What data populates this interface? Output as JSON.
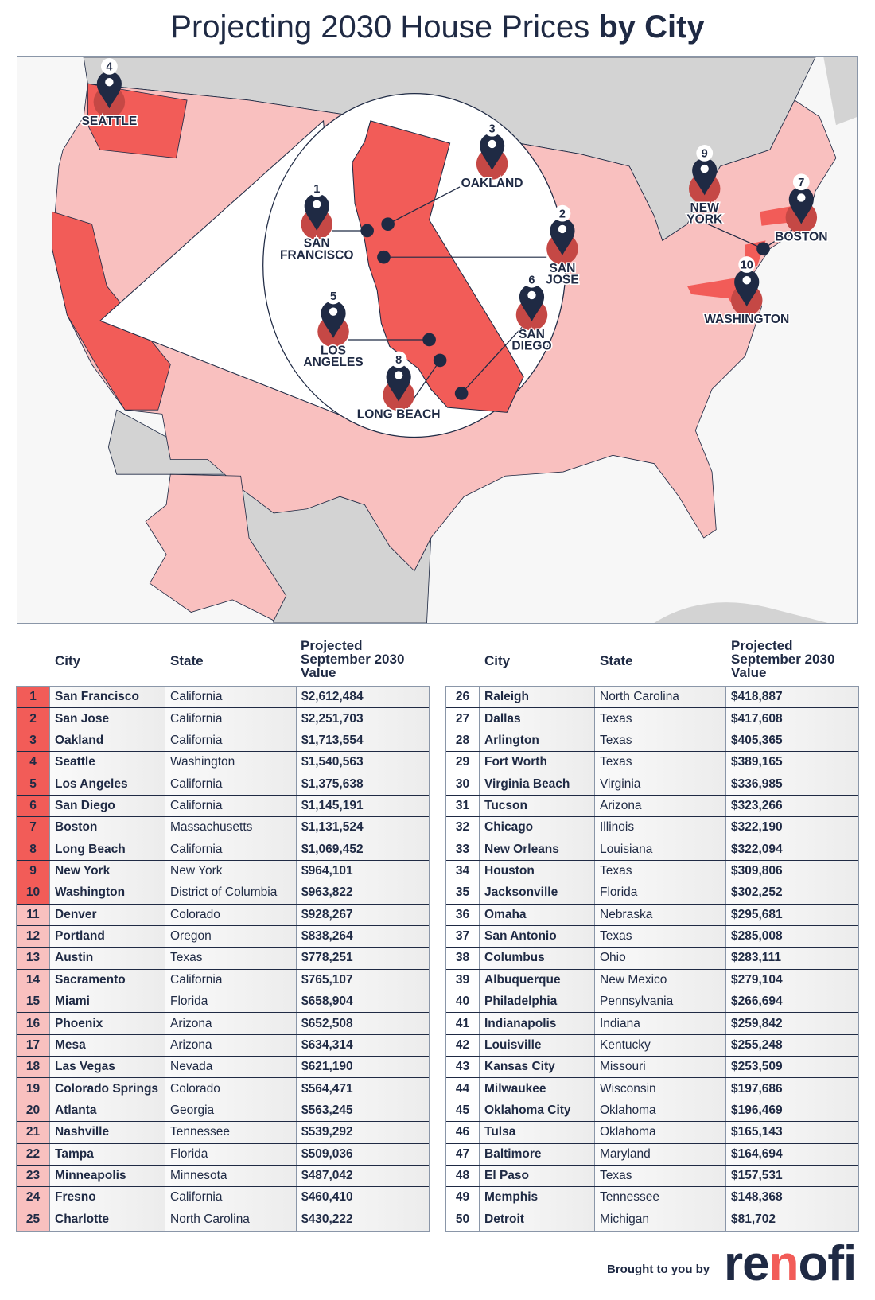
{
  "title": {
    "regular": "Projecting 2030 House Prices ",
    "bold": "by City"
  },
  "colors": {
    "top10": "#f25c58",
    "top25": "#f9c0bf",
    "text": "#1f2a44",
    "map_other_states": "#f9c0bf",
    "map_top_states": "#f25c58",
    "map_land_other": "#d3d3d3"
  },
  "map": {
    "pins": [
      {
        "rank": "4",
        "label_lines": [
          "SEATTLE"
        ]
      },
      {
        "rank": "1",
        "label_lines": [
          "SAN",
          "FRANCISCO"
        ]
      },
      {
        "rank": "3",
        "label_lines": [
          "OAKLAND"
        ]
      },
      {
        "rank": "2",
        "label_lines": [
          "SAN",
          "JOSE"
        ]
      },
      {
        "rank": "6",
        "label_lines": [
          "SAN",
          "DIEGO"
        ]
      },
      {
        "rank": "5",
        "label_lines": [
          "LOS",
          "ANGELES"
        ]
      },
      {
        "rank": "8",
        "label_lines": [
          "LONG BEACH"
        ]
      },
      {
        "rank": "9",
        "label_lines": [
          "NEW",
          "YORK"
        ]
      },
      {
        "rank": "7",
        "label_lines": [
          "BOSTON"
        ]
      },
      {
        "rank": "10",
        "label_lines": [
          "WASHINGTON"
        ]
      }
    ]
  },
  "table": {
    "headers": {
      "city": "City",
      "state": "State",
      "value": [
        "Projected",
        "September 2030",
        "Value"
      ]
    },
    "rows": [
      [
        "1",
        "San Francisco",
        "California",
        "$2,612,484"
      ],
      [
        "2",
        "San Jose",
        "California",
        "$2,251,703"
      ],
      [
        "3",
        "Oakland",
        "California",
        "$1,713,554"
      ],
      [
        "4",
        "Seattle",
        "Washington",
        "$1,540,563"
      ],
      [
        "5",
        "Los Angeles",
        "California",
        "$1,375,638"
      ],
      [
        "6",
        "San Diego",
        "California",
        "$1,145,191"
      ],
      [
        "7",
        "Boston",
        "Massachusetts",
        "$1,131,524"
      ],
      [
        "8",
        "Long Beach",
        "California",
        "$1,069,452"
      ],
      [
        "9",
        "New York",
        "New York",
        "$964,101"
      ],
      [
        "10",
        "Washington",
        "District of Columbia",
        "$963,822"
      ],
      [
        "11",
        "Denver",
        "Colorado",
        "$928,267"
      ],
      [
        "12",
        "Portland",
        "Oregon",
        "$838,264"
      ],
      [
        "13",
        "Austin",
        "Texas",
        "$778,251"
      ],
      [
        "14",
        "Sacramento",
        "California",
        "$765,107"
      ],
      [
        "15",
        "Miami",
        "Florida",
        "$658,904"
      ],
      [
        "16",
        "Phoenix",
        "Arizona",
        "$652,508"
      ],
      [
        "17",
        "Mesa",
        "Arizona",
        "$634,314"
      ],
      [
        "18",
        "Las Vegas",
        "Nevada",
        "$621,190"
      ],
      [
        "19",
        "Colorado Springs",
        "Colorado",
        "$564,471"
      ],
      [
        "20",
        "Atlanta",
        "Georgia",
        "$563,245"
      ],
      [
        "21",
        "Nashville",
        "Tennessee",
        "$539,292"
      ],
      [
        "22",
        "Tampa",
        "Florida",
        "$509,036"
      ],
      [
        "23",
        "Minneapolis",
        "Minnesota",
        "$487,042"
      ],
      [
        "24",
        "Fresno",
        "California",
        "$460,410"
      ],
      [
        "25",
        "Charlotte",
        "North Carolina",
        "$430,222"
      ],
      [
        "26",
        "Raleigh",
        "North Carolina",
        "$418,887"
      ],
      [
        "27",
        "Dallas",
        "Texas",
        "$417,608"
      ],
      [
        "28",
        "Arlington",
        "Texas",
        "$405,365"
      ],
      [
        "29",
        "Fort Worth",
        "Texas",
        "$389,165"
      ],
      [
        "30",
        "Virginia Beach",
        "Virginia",
        "$336,985"
      ],
      [
        "31",
        "Tucson",
        "Arizona",
        "$323,266"
      ],
      [
        "32",
        "Chicago",
        "Illinois",
        "$322,190"
      ],
      [
        "33",
        "New Orleans",
        "Louisiana",
        "$322,094"
      ],
      [
        "34",
        "Houston",
        "Texas",
        "$309,806"
      ],
      [
        "35",
        "Jacksonville",
        "Florida",
        "$302,252"
      ],
      [
        "36",
        "Omaha",
        "Nebraska",
        "$295,681"
      ],
      [
        "37",
        "San Antonio",
        "Texas",
        "$285,008"
      ],
      [
        "38",
        "Columbus",
        "Ohio",
        "$283,111"
      ],
      [
        "39",
        "Albuquerque",
        "New Mexico",
        "$279,104"
      ],
      [
        "40",
        "Philadelphia",
        "Pennsylvania",
        "$266,694"
      ],
      [
        "41",
        "Indianapolis",
        "Indiana",
        "$259,842"
      ],
      [
        "42",
        "Louisville",
        "Kentucky",
        "$255,248"
      ],
      [
        "43",
        "Kansas City",
        "Missouri",
        "$253,509"
      ],
      [
        "44",
        "Milwaukee",
        "Wisconsin",
        "$197,686"
      ],
      [
        "45",
        "Oklahoma City",
        "Oklahoma",
        "$196,469"
      ],
      [
        "46",
        "Tulsa",
        "Oklahoma",
        "$165,143"
      ],
      [
        "47",
        "Baltimore",
        "Maryland",
        "$164,694"
      ],
      [
        "48",
        "El Paso",
        "Texas",
        "$157,531"
      ],
      [
        "49",
        "Memphis",
        "Tennessee",
        "$148,368"
      ],
      [
        "50",
        "Detroit",
        "Michigan",
        "$81,702"
      ]
    ]
  },
  "footer": {
    "brought_by": "Brought to you by",
    "logo": {
      "pre": "re",
      "n": "n",
      "post": "ofi"
    }
  }
}
